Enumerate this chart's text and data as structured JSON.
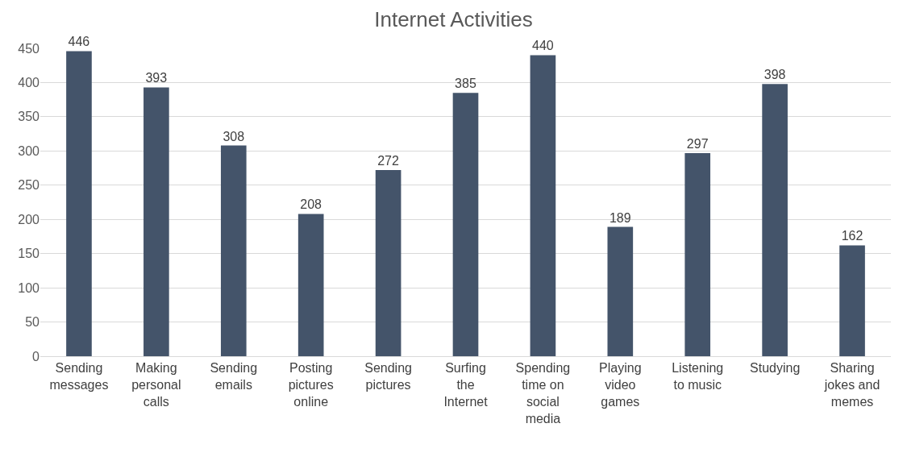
{
  "chart_data": {
    "type": "bar",
    "title": "Internet Activities",
    "categories": [
      "Sending messages",
      "Making personal calls",
      "Sending emails",
      "Posting pictures online",
      "Sending pictures",
      "Surfing the Internet",
      "Spending time on social media",
      "Playing video games",
      "Listening to music",
      "Studying",
      "Sharing jokes and memes"
    ],
    "values": [
      446,
      393,
      308,
      208,
      272,
      385,
      440,
      189,
      297,
      398,
      162
    ],
    "color": "#44546a",
    "ylim": [
      0,
      450
    ],
    "yticks": [
      0,
      50,
      100,
      150,
      200,
      250,
      300,
      350,
      400,
      450
    ],
    "grid": "y",
    "data_labels": true
  }
}
